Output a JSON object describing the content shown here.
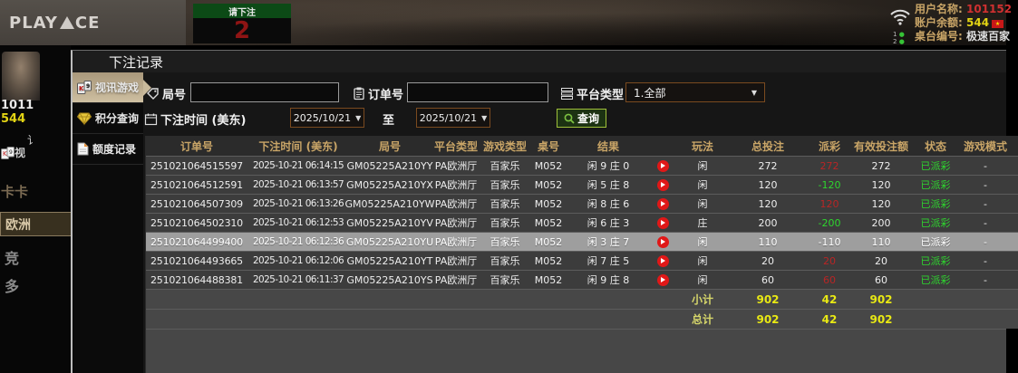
{
  "top_bar": {
    "logo_left": "PLAY",
    "logo_right": "CE",
    "bet_prompt": "请下注",
    "countdown": "2",
    "net_line_1": "1",
    "net_line_2": "2",
    "user_label": "用户名称:",
    "user_value": "101152",
    "balance_label": "账户余额:",
    "balance_value": "544",
    "table_label": "桌台编号:",
    "table_value": "极速百家"
  },
  "lobby_background": {
    "user_id": "1011",
    "balance": "544",
    "partial_text": "讠",
    "video_item": "视",
    "hall_kaka": "卡卡",
    "hall_europe": "欧洲",
    "hall_jing": "竞",
    "hall_duo": "多"
  },
  "dialog": {
    "title": "下注记录",
    "sidebar": [
      {
        "label": "视讯游戏",
        "icon": "cards-icon",
        "active": true
      },
      {
        "label": "积分查询",
        "icon": "gem-icon",
        "active": false
      },
      {
        "label": "额度记录",
        "icon": "document-icon",
        "active": false
      }
    ],
    "filters": {
      "round_label": "局号",
      "round_value": "",
      "order_label": "订单号",
      "order_value": "",
      "platform_label": "平台类型",
      "platform_value": "1.全部",
      "time_label": "下注时间 (美东)",
      "date_from": "2025/10/21",
      "to_label": "至",
      "date_to": "2025/10/21",
      "query_label": "查询"
    },
    "table": {
      "headers": [
        "订单号",
        "下注时间 (美东)",
        "局号",
        "平台类型",
        "游戏类型",
        "桌号",
        "结果",
        "",
        "玩法",
        "总投注",
        "派彩",
        "有效投注额",
        "状态",
        "游戏模式"
      ],
      "rows": [
        {
          "order_id": "251021064515597",
          "time": "2025-10-21 06:14:15",
          "round": "GM05225A210YY",
          "platform": "PA欧洲厅",
          "game": "百家乐",
          "table": "M052",
          "result": "闲 9 庄 0",
          "play": "闲",
          "total_bet": "272",
          "payout": "272",
          "valid_bet": "272",
          "status": "已派彩",
          "mode": "-",
          "selected": false
        },
        {
          "order_id": "251021064512591",
          "time": "2025-10-21 06:13:57",
          "round": "GM05225A210YX",
          "platform": "PA欧洲厅",
          "game": "百家乐",
          "table": "M052",
          "result": "闲 5 庄 8",
          "play": "闲",
          "total_bet": "120",
          "payout": "-120",
          "valid_bet": "120",
          "status": "已派彩",
          "mode": "-",
          "selected": false
        },
        {
          "order_id": "251021064507309",
          "time": "2025-10-21 06:13:26",
          "round": "GM05225A210YW",
          "platform": "PA欧洲厅",
          "game": "百家乐",
          "table": "M052",
          "result": "闲 8 庄 6",
          "play": "闲",
          "total_bet": "120",
          "payout": "120",
          "valid_bet": "120",
          "status": "已派彩",
          "mode": "-",
          "selected": false
        },
        {
          "order_id": "251021064502310",
          "time": "2025-10-21 06:12:53",
          "round": "GM05225A210YV",
          "platform": "PA欧洲厅",
          "game": "百家乐",
          "table": "M052",
          "result": "闲 6 庄 3",
          "play": "庄",
          "total_bet": "200",
          "payout": "-200",
          "valid_bet": "200",
          "status": "已派彩",
          "mode": "-",
          "selected": false
        },
        {
          "order_id": "251021064499400",
          "time": "2025-10-21 06:12:36",
          "round": "GM05225A210YU",
          "platform": "PA欧洲厅",
          "game": "百家乐",
          "table": "M052",
          "result": "闲 3 庄 7",
          "play": "闲",
          "total_bet": "110",
          "payout": "-110",
          "valid_bet": "110",
          "status": "已派彩",
          "mode": "-",
          "selected": true
        },
        {
          "order_id": "251021064493665",
          "time": "2025-10-21 06:12:06",
          "round": "GM05225A210YT",
          "platform": "PA欧洲厅",
          "game": "百家乐",
          "table": "M052",
          "result": "闲 7 庄 5",
          "play": "闲",
          "total_bet": "20",
          "payout": "20",
          "valid_bet": "20",
          "status": "已派彩",
          "mode": "-",
          "selected": false
        },
        {
          "order_id": "251021064488381",
          "time": "2025-10-21 06:11:37",
          "round": "GM05225A210YS",
          "platform": "PA欧洲厅",
          "game": "百家乐",
          "table": "M052",
          "result": "闲 9 庄 8",
          "play": "闲",
          "total_bet": "60",
          "payout": "60",
          "valid_bet": "60",
          "status": "已派彩",
          "mode": "-",
          "selected": false
        }
      ],
      "subtotal": {
        "label": "小计",
        "total_bet": "902",
        "payout": "42",
        "valid_bet": "902"
      },
      "total": {
        "label": "总计",
        "total_bet": "902",
        "payout": "42",
        "valid_bet": "902"
      }
    }
  },
  "colors": {
    "accent_tan": "#c9ba9c",
    "header_gold": "#c9a567",
    "win_red": "#b92525",
    "loss_green": "#2ed52e",
    "total_yellow": "#e8e814",
    "query_border_green": "#9fc03a"
  }
}
